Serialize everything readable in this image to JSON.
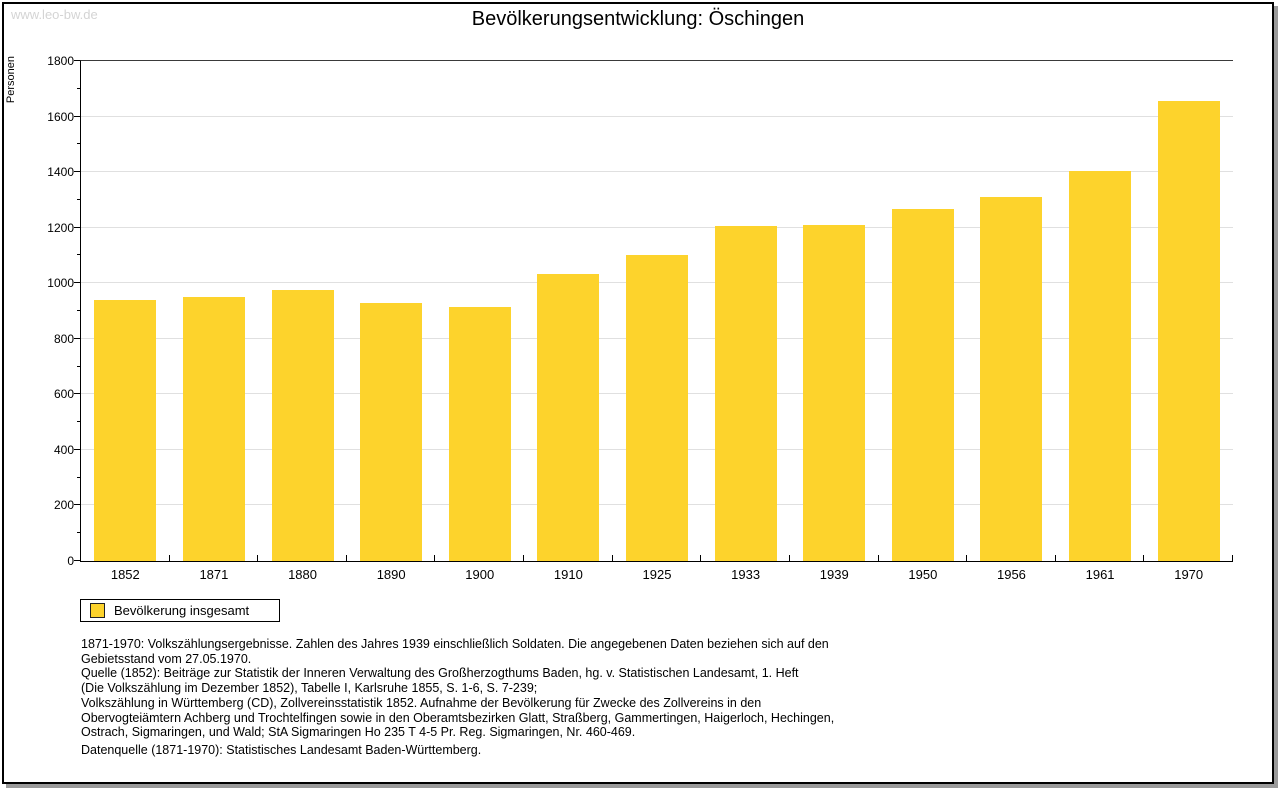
{
  "window": {
    "watermark": "www.leo-bw.de"
  },
  "title": "Bevölkerungsentwicklung: Öschingen",
  "chart_data": {
    "type": "bar",
    "title": "Bevölkerungsentwicklung: Öschingen",
    "xlabel": "",
    "ylabel": "Personen",
    "ylim": [
      0,
      1800
    ],
    "ytick_step": 200,
    "yminor_step": 100,
    "grid": true,
    "legend_position": "bottom-left",
    "categories": [
      "1852",
      "1871",
      "1880",
      "1890",
      "1900",
      "1910",
      "1925",
      "1933",
      "1939",
      "1950",
      "1956",
      "1961",
      "1970"
    ],
    "series": [
      {
        "name": "Bevölkerung insgesamt",
        "color": "#fdd32c",
        "values": [
          938,
          951,
          974,
          928,
          916,
          1035,
          1100,
          1205,
          1210,
          1266,
          1310,
          1405,
          1656
        ]
      }
    ]
  },
  "legend": {
    "label": "Bevölkerung insgesamt",
    "swatch_color": "#fdd32c"
  },
  "footnote_lines": [
    "1871-1970: Volkszählungsergebnisse. Zahlen des Jahres 1939 einschließlich Soldaten. Die angegebenen Daten beziehen sich auf den",
    "Gebietsstand vom 27.05.1970.",
    "Quelle (1852): Beiträge zur Statistik der Inneren Verwaltung des Großherzogthums Baden, hg. v. Statistischen Landesamt, 1. Heft",
    "(Die Volkszählung im Dezember 1852), Tabelle I, Karlsruhe 1855, S. 1-6, S. 7-239;",
    "Volkszählung in Württemberg (CD), Zollvereinsstatistik 1852. Aufnahme der Bevölkerung für Zwecke des Zollvereins in den",
    "Obervogteiämtern Achberg und Trochtelfingen sowie in den Oberamtsbezirken Glatt, Straßberg, Gammertingen, Haigerloch, Hechingen,",
    "Ostrach, Sigmaringen, und Wald; StA Sigmaringen Ho 235 T 4-5 Pr. Reg. Sigmaringen, Nr. 460-469."
  ],
  "datasource_line": "Datenquelle (1871-1970): Statistisches Landesamt Baden-Württemberg.",
  "colors": {
    "bar": "#fdd32c",
    "grid": "#e0e0e0",
    "axis": "#000000",
    "watermark": "#d4d4d4",
    "frame_border": "#000000",
    "frame_shadow": "#9a9a9a"
  }
}
